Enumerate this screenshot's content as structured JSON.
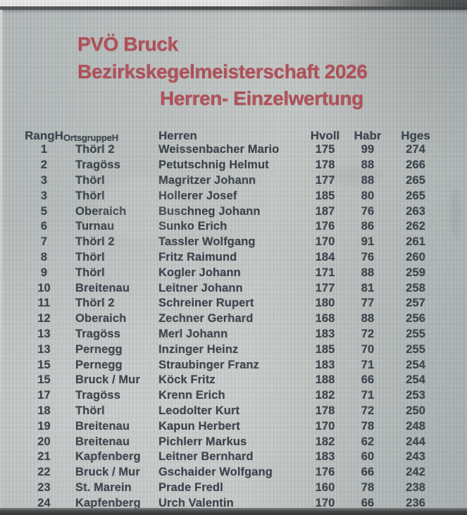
{
  "document": {
    "kind": "photographed-results-sheet",
    "organization": "PVÖ Bruck",
    "title_line1": "PVÖ Bruck",
    "title_line2": "Bezirkskegelmeisterschaft 2026",
    "title_line3": "Herren- Einzelwertung"
  },
  "colors": {
    "title_red": "#b24e57",
    "ink": "#3b414a",
    "paper": "#bcc1c0",
    "paper_edge_dark": "#45494a",
    "paper_edge_light": "#eaeae8"
  },
  "table": {
    "columns": [
      {
        "key": "rang",
        "label": "RangH"
      },
      {
        "key": "ortsgruppe",
        "label": "OrtsgruppeH"
      },
      {
        "key": "herren",
        "label": "Herren"
      },
      {
        "key": "hvoll",
        "label": "Hvoll"
      },
      {
        "key": "habr",
        "label": "Habr"
      },
      {
        "key": "hges",
        "label": "Hges"
      }
    ],
    "rows": [
      {
        "rang": "1",
        "ortsgruppe": "Thörl 2",
        "herren": "Weissenbacher Mario",
        "hvoll": "175",
        "habr": "99",
        "hges": "274"
      },
      {
        "rang": "2",
        "ortsgruppe": "Tragöss",
        "herren": "Petutschnig Helmut",
        "hvoll": "178",
        "habr": "88",
        "hges": "266"
      },
      {
        "rang": "3",
        "ortsgruppe": "Thörl",
        "herren": "Magritzer Johann",
        "hvoll": "177",
        "habr": "88",
        "hges": "265"
      },
      {
        "rang": "3",
        "ortsgruppe": "Thörl",
        "herren": "Hollerer Josef",
        "hvoll": "185",
        "habr": "80",
        "hges": "265"
      },
      {
        "rang": "5",
        "ortsgruppe": "Oberaich",
        "herren": "Buschneg Johann",
        "hvoll": "187",
        "habr": "76",
        "hges": "263"
      },
      {
        "rang": "6",
        "ortsgruppe": "Turnau",
        "herren": "Sunko Erich",
        "hvoll": "176",
        "habr": "86",
        "hges": "262"
      },
      {
        "rang": "7",
        "ortsgruppe": "Thörl 2",
        "herren": "Tassler Wolfgang",
        "hvoll": "170",
        "habr": "91",
        "hges": "261"
      },
      {
        "rang": "8",
        "ortsgruppe": "Thörl",
        "herren": "Fritz Raimund",
        "hvoll": "184",
        "habr": "76",
        "hges": "260"
      },
      {
        "rang": "9",
        "ortsgruppe": "Thörl",
        "herren": "Kogler Johann",
        "hvoll": "171",
        "habr": "88",
        "hges": "259"
      },
      {
        "rang": "10",
        "ortsgruppe": "Breitenau",
        "herren": "Leitner Johann",
        "hvoll": "177",
        "habr": "81",
        "hges": "258"
      },
      {
        "rang": "11",
        "ortsgruppe": "Thörl 2",
        "herren": "Schreiner Rupert",
        "hvoll": "180",
        "habr": "77",
        "hges": "257"
      },
      {
        "rang": "12",
        "ortsgruppe": "Oberaich",
        "herren": "Zechner Gerhard",
        "hvoll": "168",
        "habr": "88",
        "hges": "256"
      },
      {
        "rang": "13",
        "ortsgruppe": "Tragöss",
        "herren": "Merl Johann",
        "hvoll": "183",
        "habr": "72",
        "hges": "255"
      },
      {
        "rang": "13",
        "ortsgruppe": "Pernegg",
        "herren": "Inzinger Heinz",
        "hvoll": "185",
        "habr": "70",
        "hges": "255"
      },
      {
        "rang": "15",
        "ortsgruppe": "Pernegg",
        "herren": "Straubinger Franz",
        "hvoll": "183",
        "habr": "71",
        "hges": "254"
      },
      {
        "rang": "15",
        "ortsgruppe": "Bruck / Mur",
        "herren": "Köck Fritz",
        "hvoll": "188",
        "habr": "66",
        "hges": "254"
      },
      {
        "rang": "17",
        "ortsgruppe": "Tragöss",
        "herren": "Krenn Erich",
        "hvoll": "182",
        "habr": "71",
        "hges": "253"
      },
      {
        "rang": "18",
        "ortsgruppe": "Thörl",
        "herren": "Leodolter Kurt",
        "hvoll": "178",
        "habr": "72",
        "hges": "250"
      },
      {
        "rang": "19",
        "ortsgruppe": "Breitenau",
        "herren": "Kapun Herbert",
        "hvoll": "170",
        "habr": "78",
        "hges": "248"
      },
      {
        "rang": "20",
        "ortsgruppe": "Breitenau",
        "herren": "Pichlerr Markus",
        "hvoll": "182",
        "habr": "62",
        "hges": "244"
      },
      {
        "rang": "21",
        "ortsgruppe": "Kapfenberg",
        "herren": "Leitner Bernhard",
        "hvoll": "183",
        "habr": "60",
        "hges": "243"
      },
      {
        "rang": "22",
        "ortsgruppe": "Bruck / Mur",
        "herren": "Gschaider Wolfgang",
        "hvoll": "176",
        "habr": "66",
        "hges": "242"
      },
      {
        "rang": "23",
        "ortsgruppe": "St. Marein",
        "herren": "Prade Fredl",
        "hvoll": "160",
        "habr": "78",
        "hges": "238"
      },
      {
        "rang": "24",
        "ortsgruppe": "Kapfenberg",
        "herren": "Urch Valentin",
        "hvoll": "170",
        "habr": "66",
        "hges": "236"
      }
    ]
  }
}
